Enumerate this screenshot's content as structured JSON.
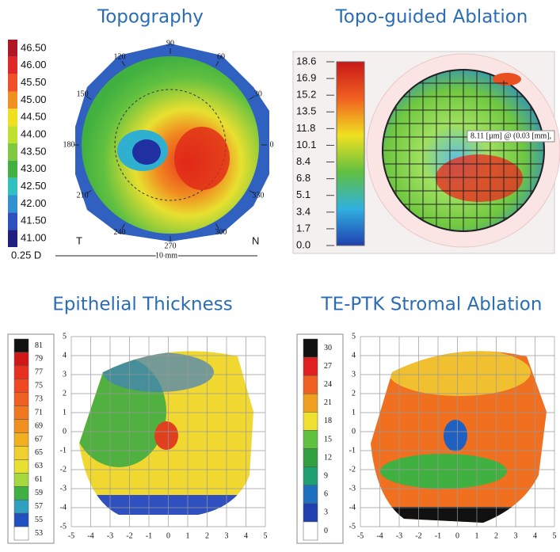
{
  "panels": [
    {
      "title": "Topography",
      "scale": [
        "46.50",
        "46.00",
        "45.50",
        "45.00",
        "44.50",
        "44.00",
        "43.50",
        "43.00",
        "42.50",
        "42.00",
        "41.50",
        "41.00"
      ],
      "unit": "0.25 D",
      "angles": [
        "0",
        "30",
        "60",
        "90",
        "120",
        "150",
        "180",
        "210",
        "240",
        "270",
        "300",
        "330"
      ],
      "labels": [
        "T",
        "N"
      ],
      "scale_bar": "10 mm"
    },
    {
      "title": "Topo-guided Ablation",
      "scale": [
        "18.6",
        "16.9",
        "15.2",
        "13.5",
        "11.8",
        "10.1",
        "8.4",
        "6.8",
        "5.1",
        "3.4",
        "1.7",
        "0.0"
      ],
      "readout": "8.11 [µm] @ (0.03 [mm],"
    },
    {
      "title": "Epithelial Thickness",
      "scale": [
        "81",
        "79",
        "77",
        "75",
        "73",
        "71",
        "69",
        "67",
        "65",
        "63",
        "61",
        "59",
        "57",
        "55",
        "53"
      ],
      "xticks": [
        "-5",
        "-4",
        "-3",
        "-2",
        "-1",
        "0",
        "1",
        "2",
        "3",
        "4",
        "5"
      ],
      "yticks": [
        "5",
        "4",
        "3",
        "2",
        "1",
        "0",
        "-1",
        "-2",
        "-3",
        "-4",
        "-5"
      ]
    },
    {
      "title": "TE-PTK Stromal Ablation",
      "scale": [
        "30",
        "27",
        "24",
        "21",
        "18",
        "15",
        "12",
        "9",
        "6",
        "3",
        "0"
      ],
      "xticks": [
        "-5",
        "-4",
        "-3",
        "-2",
        "-1",
        "0",
        "1",
        "2",
        "3",
        "4",
        "5"
      ],
      "yticks": [
        "5",
        "4",
        "3",
        "2",
        "1",
        "0",
        "-1",
        "-2",
        "-3",
        "-4",
        "-5"
      ]
    }
  ]
}
